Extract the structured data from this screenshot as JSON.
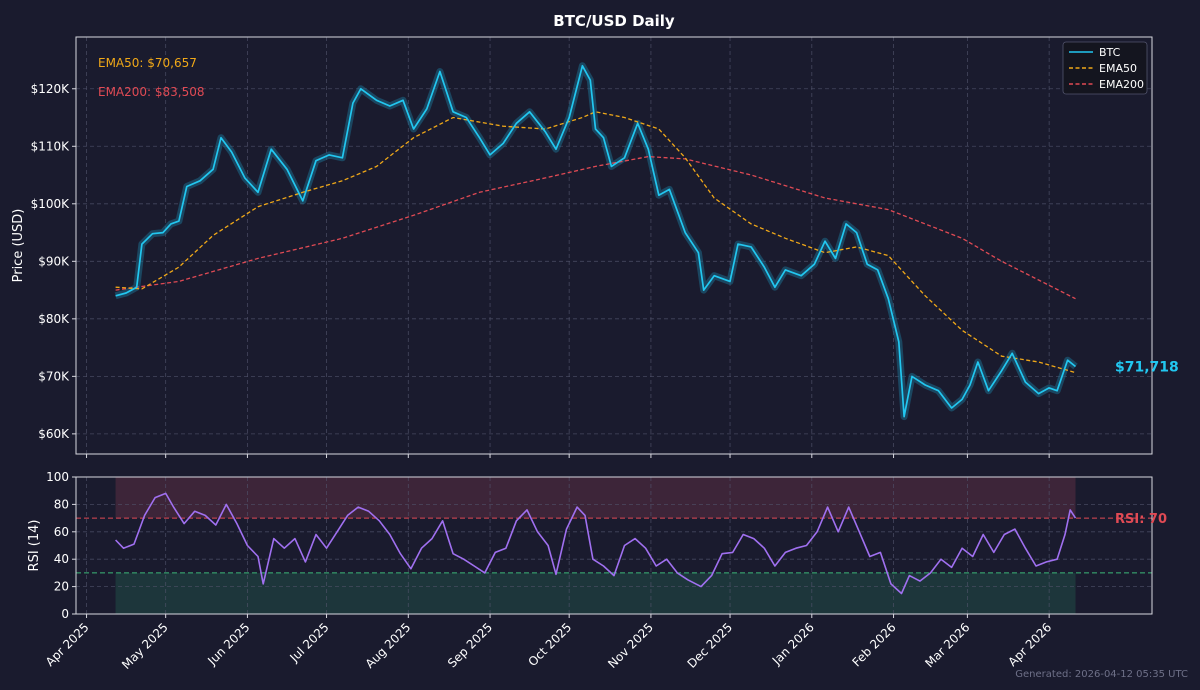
{
  "title": "BTC/USD Daily",
  "footer": "Generated: 2026-04-12 05:35 UTC",
  "colors": {
    "background": "#1a1b2e",
    "btc": "#22c7f0",
    "btc_band": "#1e6a8a",
    "ema50": "#f0a818",
    "ema200": "#e04a54",
    "rsi": "#a070f0",
    "overbought_zone": "#4a2a3e",
    "oversold_zone": "#1e3d3e",
    "oversold_line": "#3cb878",
    "axis_text": "#ffffff",
    "grid": "#50526a"
  },
  "chart_data": [
    {
      "type": "line",
      "panel": "price",
      "ylabel": "Price (USD)",
      "ylim": [
        56500,
        129000
      ],
      "yticks": [
        60000,
        70000,
        80000,
        90000,
        100000,
        110000,
        120000
      ],
      "ytick_labels": [
        "$60K",
        "$70K",
        "$80K",
        "$90K",
        "$100K",
        "$110K",
        "$120K"
      ],
      "xlim": [
        "2025-03-28",
        "2026-05-10"
      ],
      "grid": true,
      "legend_position": "top-right",
      "annotations": {
        "ema50_label": "EMA50: $70,657",
        "ema200_label": "EMA200: $83,508",
        "last_price_label": "$71,718",
        "last_price_value": 71718
      },
      "series": [
        {
          "name": "BTC",
          "style": "solid",
          "points": [
            [
              "2025-04-12",
              84000
            ],
            [
              "2025-04-16",
              84500
            ],
            [
              "2025-04-20",
              85500
            ],
            [
              "2025-04-22",
              93000
            ],
            [
              "2025-04-26",
              94800
            ],
            [
              "2025-04-30",
              95000
            ],
            [
              "2025-05-03",
              96500
            ],
            [
              "2025-05-06",
              97000
            ],
            [
              "2025-05-09",
              103000
            ],
            [
              "2025-05-14",
              104000
            ],
            [
              "2025-05-19",
              106000
            ],
            [
              "2025-05-22",
              111500
            ],
            [
              "2025-05-26",
              109000
            ],
            [
              "2025-05-31",
              104500
            ],
            [
              "2025-06-05",
              102000
            ],
            [
              "2025-06-10",
              109500
            ],
            [
              "2025-06-16",
              106000
            ],
            [
              "2025-06-22",
              100500
            ],
            [
              "2025-06-27",
              107500
            ],
            [
              "2025-07-02",
              108500
            ],
            [
              "2025-07-07",
              108000
            ],
            [
              "2025-07-11",
              117500
            ],
            [
              "2025-07-14",
              120000
            ],
            [
              "2025-07-20",
              118000
            ],
            [
              "2025-07-25",
              117000
            ],
            [
              "2025-07-30",
              118000
            ],
            [
              "2025-08-03",
              113000
            ],
            [
              "2025-08-08",
              116500
            ],
            [
              "2025-08-13",
              123000
            ],
            [
              "2025-08-18",
              116000
            ],
            [
              "2025-08-23",
              115000
            ],
            [
              "2025-08-28",
              111500
            ],
            [
              "2025-09-01",
              108500
            ],
            [
              "2025-09-06",
              110500
            ],
            [
              "2025-09-11",
              114000
            ],
            [
              "2025-09-16",
              116000
            ],
            [
              "2025-09-22",
              112500
            ],
            [
              "2025-09-26",
              109500
            ],
            [
              "2025-10-01",
              115000
            ],
            [
              "2025-10-06",
              124000
            ],
            [
              "2025-10-09",
              121500
            ],
            [
              "2025-10-11",
              113000
            ],
            [
              "2025-10-14",
              111500
            ],
            [
              "2025-10-17",
              106500
            ],
            [
              "2025-10-22",
              108000
            ],
            [
              "2025-10-27",
              114000
            ],
            [
              "2025-10-31",
              109500
            ],
            [
              "2025-11-04",
              101500
            ],
            [
              "2025-11-08",
              102500
            ],
            [
              "2025-11-14",
              95000
            ],
            [
              "2025-11-19",
              91500
            ],
            [
              "2025-11-21",
              85000
            ],
            [
              "2025-11-25",
              87500
            ],
            [
              "2025-12-01",
              86500
            ],
            [
              "2025-12-04",
              93000
            ],
            [
              "2025-12-09",
              92500
            ],
            [
              "2025-12-14",
              89000
            ],
            [
              "2025-12-18",
              85500
            ],
            [
              "2025-12-22",
              88500
            ],
            [
              "2025-12-28",
              87500
            ],
            [
              "2026-01-02",
              89500
            ],
            [
              "2026-01-06",
              93500
            ],
            [
              "2026-01-10",
              90500
            ],
            [
              "2026-01-14",
              96500
            ],
            [
              "2026-01-18",
              95000
            ],
            [
              "2026-01-22",
              89500
            ],
            [
              "2026-01-26",
              88500
            ],
            [
              "2026-01-30",
              83500
            ],
            [
              "2026-02-03",
              76000
            ],
            [
              "2026-02-05",
              63000
            ],
            [
              "2026-02-08",
              70000
            ],
            [
              "2026-02-13",
              68500
            ],
            [
              "2026-02-18",
              67500
            ],
            [
              "2026-02-23",
              64500
            ],
            [
              "2026-02-27",
              66000
            ],
            [
              "2026-03-02",
              68500
            ],
            [
              "2026-03-05",
              72500
            ],
            [
              "2026-03-09",
              67500
            ],
            [
              "2026-03-14",
              71000
            ],
            [
              "2026-03-18",
              74000
            ],
            [
              "2026-03-23",
              69000
            ],
            [
              "2026-03-28",
              67000
            ],
            [
              "2026-04-01",
              68000
            ],
            [
              "2026-04-04",
              67500
            ],
            [
              "2026-04-08",
              72800
            ],
            [
              "2026-04-11",
              71718
            ]
          ]
        },
        {
          "name": "EMA50",
          "style": "dashed",
          "points": [
            [
              "2025-04-12",
              85500
            ],
            [
              "2025-04-22",
              85200
            ],
            [
              "2025-05-06",
              89000
            ],
            [
              "2025-05-19",
              94500
            ],
            [
              "2025-06-05",
              99500
            ],
            [
              "2025-06-22",
              102000
            ],
            [
              "2025-07-07",
              104000
            ],
            [
              "2025-07-20",
              106500
            ],
            [
              "2025-08-03",
              111500
            ],
            [
              "2025-08-18",
              115000
            ],
            [
              "2025-09-06",
              113500
            ],
            [
              "2025-09-22",
              113000
            ],
            [
              "2025-10-06",
              115000
            ],
            [
              "2025-10-11",
              116000
            ],
            [
              "2025-10-22",
              115000
            ],
            [
              "2025-11-04",
              113000
            ],
            [
              "2025-11-14",
              108000
            ],
            [
              "2025-11-25",
              101000
            ],
            [
              "2025-12-09",
              96500
            ],
            [
              "2025-12-22",
              94000
            ],
            [
              "2026-01-06",
              91500
            ],
            [
              "2026-01-18",
              92500
            ],
            [
              "2026-01-30",
              91000
            ],
            [
              "2026-02-13",
              84000
            ],
            [
              "2026-02-27",
              78000
            ],
            [
              "2026-03-14",
              73500
            ],
            [
              "2026-03-28",
              72500
            ],
            [
              "2026-04-11",
              70657
            ]
          ]
        },
        {
          "name": "EMA200",
          "style": "dashed",
          "points": [
            [
              "2025-04-12",
              85000
            ],
            [
              "2025-05-06",
              86500
            ],
            [
              "2025-06-05",
              90500
            ],
            [
              "2025-07-07",
              94000
            ],
            [
              "2025-08-03",
              98000
            ],
            [
              "2025-08-28",
              102000
            ],
            [
              "2025-09-22",
              104500
            ],
            [
              "2025-10-11",
              106500
            ],
            [
              "2025-10-31",
              108200
            ],
            [
              "2025-11-14",
              107800
            ],
            [
              "2025-12-09",
              105000
            ],
            [
              "2026-01-06",
              101000
            ],
            [
              "2026-01-30",
              99000
            ],
            [
              "2026-02-27",
              94000
            ],
            [
              "2026-03-14",
              90000
            ],
            [
              "2026-04-11",
              83508
            ]
          ]
        }
      ]
    },
    {
      "type": "line",
      "panel": "rsi",
      "ylabel": "RSI (14)",
      "ylim": [
        0,
        100
      ],
      "yticks": [
        0,
        20,
        40,
        60,
        80,
        100
      ],
      "ytick_labels": [
        "0",
        "20",
        "40",
        "60",
        "80",
        "100"
      ],
      "xlim": [
        "2025-03-28",
        "2026-05-10"
      ],
      "xticks": [
        "2025-04-01",
        "2025-05-01",
        "2025-06-01",
        "2025-07-01",
        "2025-08-01",
        "2025-09-01",
        "2025-10-01",
        "2025-11-01",
        "2025-12-01",
        "2026-01-01",
        "2026-02-01",
        "2026-03-01",
        "2026-04-01"
      ],
      "xtick_labels": [
        "Apr 2025",
        "May 2025",
        "Jun 2025",
        "Jul 2025",
        "Aug 2025",
        "Sep 2025",
        "Oct 2025",
        "Nov 2025",
        "Dec 2025",
        "Jan 2026",
        "Feb 2026",
        "Mar 2026",
        "Apr 2026"
      ],
      "overbought": 70,
      "oversold": 30,
      "grid": true,
      "annotations": {
        "rsi_label": "RSI: 70"
      },
      "series": [
        {
          "name": "RSI",
          "style": "solid",
          "points": [
            [
              "2025-04-12",
              54
            ],
            [
              "2025-04-15",
              48
            ],
            [
              "2025-04-19",
              51
            ],
            [
              "2025-04-23",
              72
            ],
            [
              "2025-04-27",
              85
            ],
            [
              "2025-05-01",
              88
            ],
            [
              "2025-05-04",
              78
            ],
            [
              "2025-05-08",
              66
            ],
            [
              "2025-05-12",
              75
            ],
            [
              "2025-05-16",
              72
            ],
            [
              "2025-05-20",
              65
            ],
            [
              "2025-05-24",
              80
            ],
            [
              "2025-05-28",
              66
            ],
            [
              "2025-06-01",
              50
            ],
            [
              "2025-06-05",
              42
            ],
            [
              "2025-06-07",
              22
            ],
            [
              "2025-06-11",
              55
            ],
            [
              "2025-06-15",
              48
            ],
            [
              "2025-06-19",
              55
            ],
            [
              "2025-06-23",
              38
            ],
            [
              "2025-06-27",
              58
            ],
            [
              "2025-07-01",
              48
            ],
            [
              "2025-07-05",
              60
            ],
            [
              "2025-07-09",
              72
            ],
            [
              "2025-07-13",
              78
            ],
            [
              "2025-07-17",
              75
            ],
            [
              "2025-07-21",
              68
            ],
            [
              "2025-07-25",
              58
            ],
            [
              "2025-07-29",
              44
            ],
            [
              "2025-08-02",
              33
            ],
            [
              "2025-08-06",
              48
            ],
            [
              "2025-08-10",
              55
            ],
            [
              "2025-08-14",
              68
            ],
            [
              "2025-08-18",
              44
            ],
            [
              "2025-08-22",
              40
            ],
            [
              "2025-08-26",
              35
            ],
            [
              "2025-08-30",
              30
            ],
            [
              "2025-09-03",
              45
            ],
            [
              "2025-09-07",
              48
            ],
            [
              "2025-09-11",
              68
            ],
            [
              "2025-09-15",
              76
            ],
            [
              "2025-09-19",
              60
            ],
            [
              "2025-09-23",
              50
            ],
            [
              "2025-09-26",
              29
            ],
            [
              "2025-09-30",
              62
            ],
            [
              "2025-10-04",
              78
            ],
            [
              "2025-10-07",
              72
            ],
            [
              "2025-10-10",
              40
            ],
            [
              "2025-10-14",
              35
            ],
            [
              "2025-10-18",
              28
            ],
            [
              "2025-10-22",
              50
            ],
            [
              "2025-10-26",
              55
            ],
            [
              "2025-10-30",
              48
            ],
            [
              "2025-11-03",
              35
            ],
            [
              "2025-11-07",
              40
            ],
            [
              "2025-11-11",
              30
            ],
            [
              "2025-11-15",
              25
            ],
            [
              "2025-11-20",
              20
            ],
            [
              "2025-11-24",
              28
            ],
            [
              "2025-11-28",
              44
            ],
            [
              "2025-12-02",
              45
            ],
            [
              "2025-12-06",
              58
            ],
            [
              "2025-12-10",
              55
            ],
            [
              "2025-12-14",
              48
            ],
            [
              "2025-12-18",
              35
            ],
            [
              "2025-12-22",
              45
            ],
            [
              "2025-12-26",
              48
            ],
            [
              "2025-12-30",
              50
            ],
            [
              "2026-01-03",
              60
            ],
            [
              "2026-01-07",
              78
            ],
            [
              "2026-01-11",
              60
            ],
            [
              "2026-01-15",
              78
            ],
            [
              "2026-01-19",
              60
            ],
            [
              "2026-01-23",
              42
            ],
            [
              "2026-01-27",
              45
            ],
            [
              "2026-01-31",
              22
            ],
            [
              "2026-02-04",
              15
            ],
            [
              "2026-02-07",
              28
            ],
            [
              "2026-02-11",
              24
            ],
            [
              "2026-02-15",
              30
            ],
            [
              "2026-02-19",
              40
            ],
            [
              "2026-02-23",
              34
            ],
            [
              "2026-02-27",
              48
            ],
            [
              "2026-03-03",
              42
            ],
            [
              "2026-03-07",
              58
            ],
            [
              "2026-03-11",
              45
            ],
            [
              "2026-03-15",
              58
            ],
            [
              "2026-03-19",
              62
            ],
            [
              "2026-03-23",
              48
            ],
            [
              "2026-03-27",
              35
            ],
            [
              "2026-03-31",
              38
            ],
            [
              "2026-04-04",
              40
            ],
            [
              "2026-04-07",
              58
            ],
            [
              "2026-04-09",
              76
            ],
            [
              "2026-04-11",
              70
            ]
          ]
        }
      ]
    }
  ]
}
